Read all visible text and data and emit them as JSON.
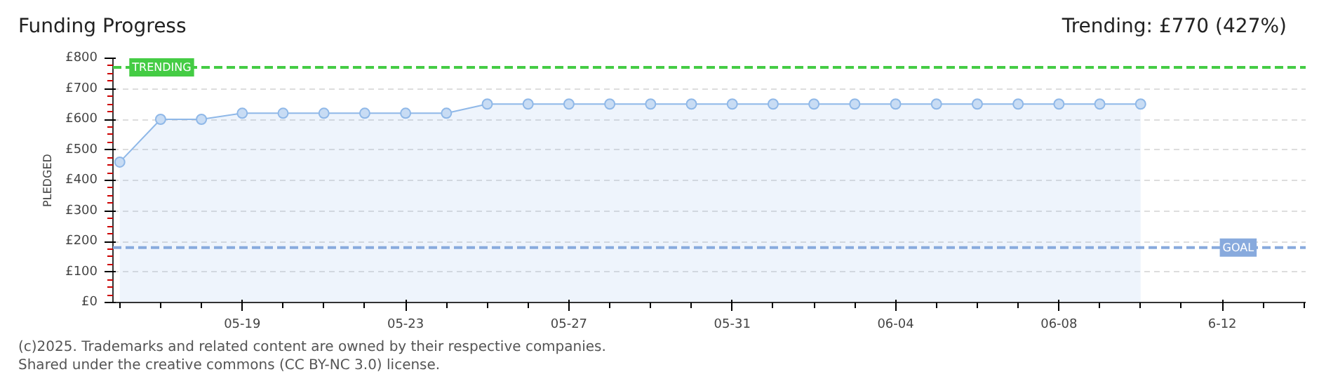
{
  "chart_data": {
    "type": "area",
    "title": "Funding Progress",
    "subtitle": "Trending:  £770 (427%)",
    "ylabel": "PLEDGED",
    "x": [
      "2025-05-16",
      "2025-05-17",
      "2025-05-18",
      "2025-05-19",
      "2025-05-20",
      "2025-05-21",
      "2025-05-22",
      "2025-05-23",
      "2025-05-24",
      "2025-05-25",
      "2025-05-26",
      "2025-05-27",
      "2025-05-28",
      "2025-05-29",
      "2025-05-30",
      "2025-05-31",
      "2025-06-01",
      "2025-06-02",
      "2025-06-03",
      "2025-06-04",
      "2025-06-05",
      "2025-06-06",
      "2025-06-07",
      "2025-06-08",
      "2025-06-09",
      "2025-06-10"
    ],
    "series": [
      {
        "color": "#8fb8e8",
        "values": [
          460,
          600,
          600,
          620,
          620,
          620,
          620,
          620,
          620,
          650,
          650,
          650,
          650,
          650,
          650,
          650,
          650,
          650,
          650,
          650,
          650,
          650,
          650,
          650,
          650,
          650
        ]
      }
    ],
    "xlim": [
      "2025-05-15T20:00",
      "2025-06-14T01:00"
    ],
    "xticks": [
      {
        "value": "2025-05-19",
        "label": "05-19"
      },
      {
        "value": "2025-05-23",
        "label": "05-23"
      },
      {
        "value": "2025-05-27",
        "label": "05-27"
      },
      {
        "value": "2025-05-31",
        "label": "05-31"
      },
      {
        "value": "2025-06-04",
        "label": "06-04"
      },
      {
        "value": "2025-06-08",
        "label": "06-08"
      },
      {
        "value": "2025-06-12",
        "label": "6-12"
      }
    ],
    "ylim": [
      0,
      800
    ],
    "yticks": [
      {
        "value": 0,
        "label": "£0"
      },
      {
        "value": 100,
        "label": "£100"
      },
      {
        "value": 200,
        "label": "£200"
      },
      {
        "value": 300,
        "label": "£300"
      },
      {
        "value": 400,
        "label": "£400"
      },
      {
        "value": 500,
        "label": "£500"
      },
      {
        "value": 600,
        "label": "£600"
      },
      {
        "value": 700,
        "label": "£700"
      },
      {
        "value": 800,
        "label": "£800"
      }
    ],
    "ref_lines": [
      {
        "axis": "y",
        "value": 770,
        "label": "TRENDING",
        "color": "#44cc44",
        "line_style": "dashed"
      },
      {
        "axis": "y",
        "value": 180,
        "label": "GOAL",
        "color": "#88aadd",
        "line_style": "dashed"
      }
    ],
    "grid": "y",
    "marker": "circle",
    "line_style": "solid",
    "annotations": [
      "(c)2025. Trademarks and related content are owned by their respective companies.",
      "Shared under the creative commons (CC BY-NC 3.0) license."
    ]
  }
}
